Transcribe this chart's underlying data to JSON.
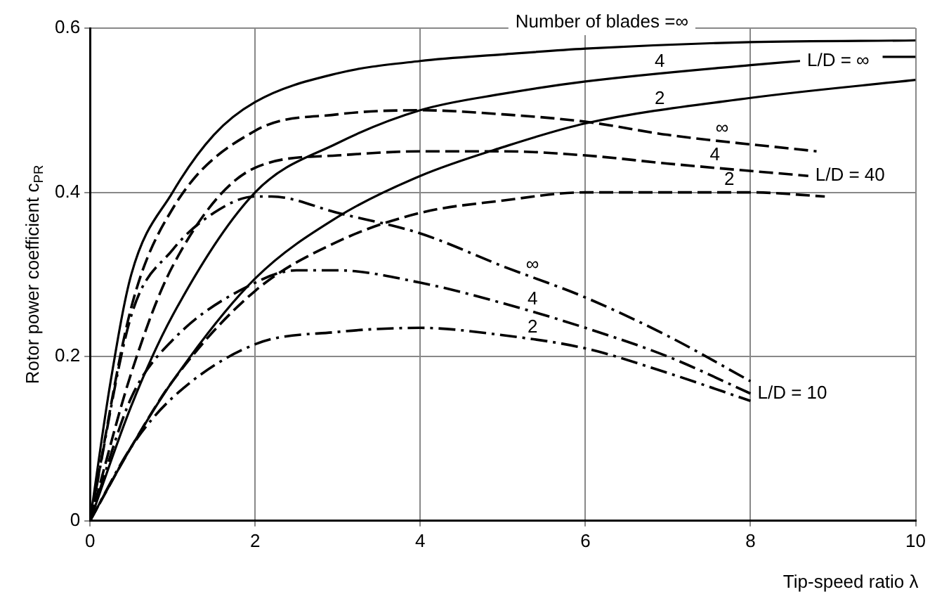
{
  "chart_data": {
    "type": "line",
    "xlabel": "Tip-speed ratio λ",
    "ylabel": "Rotor power coefficient c$_{PR}$",
    "xlim": [
      0,
      10
    ],
    "ylim": [
      0,
      0.6
    ],
    "xticks": [
      0,
      2,
      4,
      6,
      8,
      10
    ],
    "yticks": [
      0,
      0.2,
      0.4,
      0.6
    ],
    "grid": true,
    "legend": false,
    "marker": "none",
    "series": [
      {
        "color": "#000000",
        "line_style": "solid",
        "x": [
          0,
          0.25,
          0.5,
          1,
          1.5,
          2,
          3,
          4,
          5,
          6,
          8,
          10
        ],
        "values": [
          0,
          0.17,
          0.3,
          0.4,
          0.47,
          0.51,
          0.545,
          0.56,
          0.568,
          0.575,
          0.583,
          0.585
        ]
      },
      {
        "name": "4",
        "color": "#000000",
        "line_style": "solid",
        "x": [
          0,
          0.5,
          1,
          2,
          3,
          4,
          5,
          6,
          8,
          8.6,
          null,
          9.6,
          10
        ],
        "values": [
          0,
          0.14,
          0.25,
          0.4,
          0.46,
          0.5,
          0.52,
          0.535,
          0.555,
          0.56,
          null,
          0.565,
          0.565
        ]
      },
      {
        "name": "2",
        "color": "#000000",
        "line_style": "solid",
        "x": [
          0,
          0.5,
          1,
          2,
          3,
          4,
          5,
          6,
          8,
          10
        ],
        "values": [
          0,
          0.09,
          0.17,
          0.295,
          0.37,
          0.42,
          0.455,
          0.484,
          0.515,
          0.537
        ]
      },
      {
        "name": "∞",
        "color": "#000000",
        "line_style": "dashed",
        "x": [
          0,
          0.5,
          1,
          2,
          3,
          4,
          5,
          6,
          7,
          8.8
        ],
        "values": [
          0,
          0.26,
          0.38,
          0.475,
          0.495,
          0.5,
          0.495,
          0.486,
          0.47,
          0.45
        ]
      },
      {
        "name": "4",
        "color": "#000000",
        "line_style": "dashed",
        "x": [
          0,
          0.5,
          1,
          2,
          3,
          4,
          5,
          6,
          7,
          8.7
        ],
        "values": [
          0,
          0.18,
          0.31,
          0.43,
          0.445,
          0.45,
          0.45,
          0.445,
          0.435,
          0.42
        ]
      },
      {
        "name": "2",
        "color": "#000000",
        "line_style": "dashed",
        "x": [
          0,
          0.5,
          1,
          2,
          3,
          4,
          5,
          6,
          7,
          8,
          8.9
        ],
        "values": [
          0,
          0.09,
          0.17,
          0.28,
          0.34,
          0.375,
          0.39,
          0.4,
          0.4,
          0.4,
          0.395
        ]
      },
      {
        "name": "∞",
        "color": "#000000",
        "line_style": "dashdot",
        "x": [
          0,
          0.5,
          1,
          1.5,
          2,
          2.2,
          3,
          4,
          5,
          6,
          7,
          8
        ],
        "values": [
          0,
          0.25,
          0.33,
          0.375,
          0.395,
          0.395,
          0.375,
          0.35,
          0.31,
          0.272,
          0.225,
          0.17
        ]
      },
      {
        "name": "4",
        "color": "#000000",
        "line_style": "dashdot",
        "x": [
          0,
          0.5,
          1,
          2,
          2.5,
          3,
          4,
          5,
          6,
          7,
          8
        ],
        "values": [
          0,
          0.15,
          0.22,
          0.29,
          0.305,
          0.305,
          0.29,
          0.265,
          0.235,
          0.2,
          0.155
        ]
      },
      {
        "name": "2",
        "color": "#000000",
        "line_style": "dashdot",
        "x": [
          0,
          0.5,
          1,
          2,
          3,
          4,
          5,
          6,
          7,
          8
        ],
        "values": [
          0,
          0.09,
          0.15,
          0.215,
          0.23,
          0.235,
          0.226,
          0.21,
          0.18,
          0.146
        ]
      }
    ],
    "annotations": [
      "Number of blades =∞",
      "L/D = ∞",
      "L/D = 40",
      "L/D = 10"
    ]
  }
}
